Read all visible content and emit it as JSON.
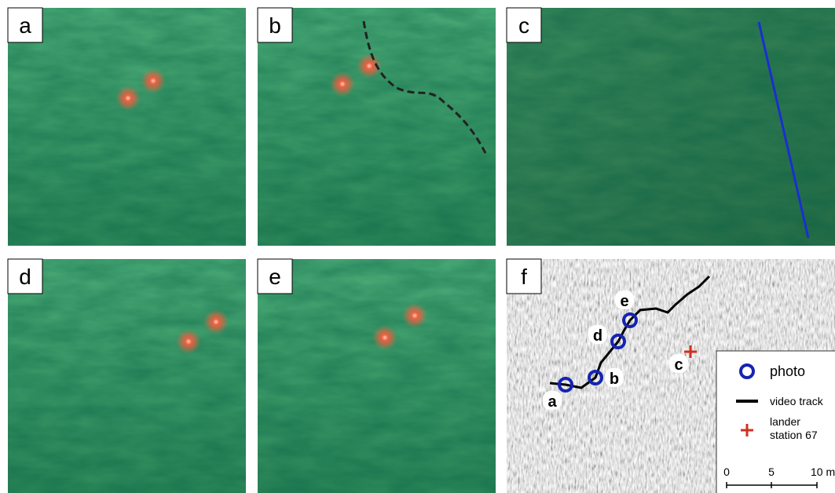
{
  "panels": [
    "a",
    "b",
    "c",
    "d",
    "e",
    "f"
  ],
  "map": {
    "points": [
      "a",
      "b",
      "d",
      "e"
    ],
    "station": "c",
    "legend": {
      "photo": "photo",
      "video_track": "video track",
      "lander": [
        "lander",
        "station 67"
      ]
    },
    "scale": [
      "0",
      "5",
      "10 m"
    ]
  }
}
